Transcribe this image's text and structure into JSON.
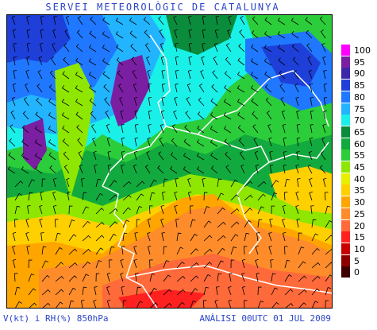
{
  "header": {
    "title": "SERVEI METEOROLÒGIC DE CATALUNYA"
  },
  "footer": {
    "variables": "V(kt) i RH(%) 850hPa",
    "analysis": "ANÀLISI 00UTC 01 JUL 2009"
  },
  "legend": {
    "levels": [
      {
        "label": "100",
        "color": "#ff00ff"
      },
      {
        "label": "95",
        "color": "#7b1fa2"
      },
      {
        "label": "90",
        "color": "#3d27a8"
      },
      {
        "label": "85",
        "color": "#1e3fd8"
      },
      {
        "label": "80",
        "color": "#1f78ff"
      },
      {
        "label": "75",
        "color": "#22b4ff"
      },
      {
        "label": "70",
        "color": "#19f0e8"
      },
      {
        "label": "65",
        "color": "#0a8c3c"
      },
      {
        "label": "60",
        "color": "#12aa3e"
      },
      {
        "label": "55",
        "color": "#2ccd3a"
      },
      {
        "label": "45",
        "color": "#8fe600"
      },
      {
        "label": "40",
        "color": "#e6f000"
      },
      {
        "label": "35",
        "color": "#ffd000"
      },
      {
        "label": "30",
        "color": "#ffa500"
      },
      {
        "label": "25",
        "color": "#ff8c2a"
      },
      {
        "label": "20",
        "color": "#ff6a3a"
      },
      {
        "label": "15",
        "color": "#ff2020"
      },
      {
        "label": "10",
        "color": "#c80000"
      },
      {
        "label": "5",
        "color": "#8c0000"
      },
      {
        "label": "0",
        "color": "#3c0000"
      }
    ]
  }
}
